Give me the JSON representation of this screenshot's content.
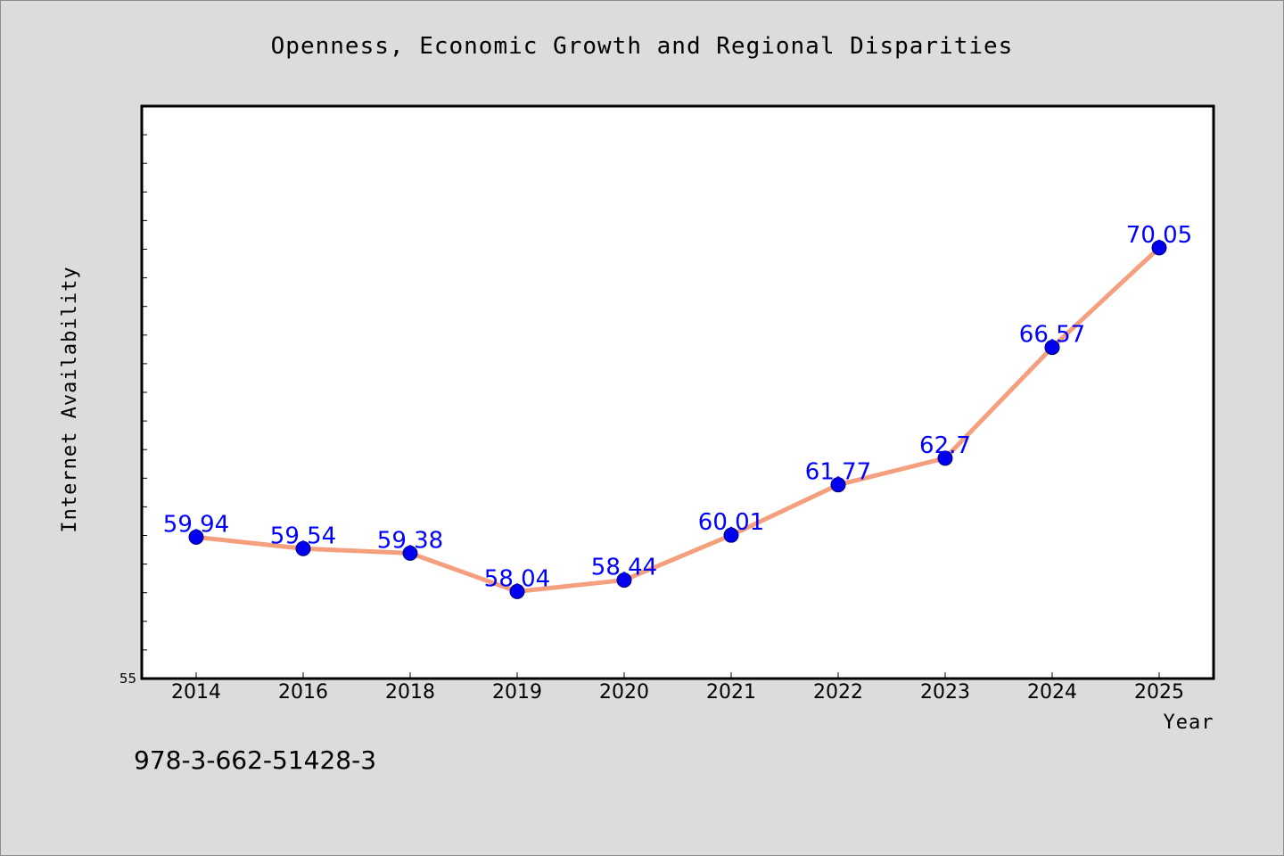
{
  "chart_data": {
    "type": "line",
    "title": "Openness, Economic Growth and Regional Disparities",
    "xlabel": "Year",
    "ylabel": "Internet Availability",
    "categories": [
      "2014",
      "2016",
      "2018",
      "2019",
      "2020",
      "2021",
      "2022",
      "2023",
      "2024",
      "2025"
    ],
    "series": [
      {
        "values": [
          59.94,
          59.54,
          59.38,
          58.04,
          58.44,
          60.01,
          61.77,
          62.7,
          66.57,
          70.05
        ],
        "data_labels": [
          "59.94",
          "59.54",
          "59.38",
          "58.04",
          "58.44",
          "60.01",
          "61.77",
          "62.7",
          "66.57",
          "70.05"
        ],
        "line_color": "#f4a07e",
        "marker_color": "#0000ee"
      }
    ],
    "ylim": [
      55,
      75
    ],
    "yticks_labeled": [
      "55"
    ],
    "grid": false,
    "legend": "none",
    "label_color": "#0000ff"
  },
  "footnote": "978-3-662-51428-3"
}
